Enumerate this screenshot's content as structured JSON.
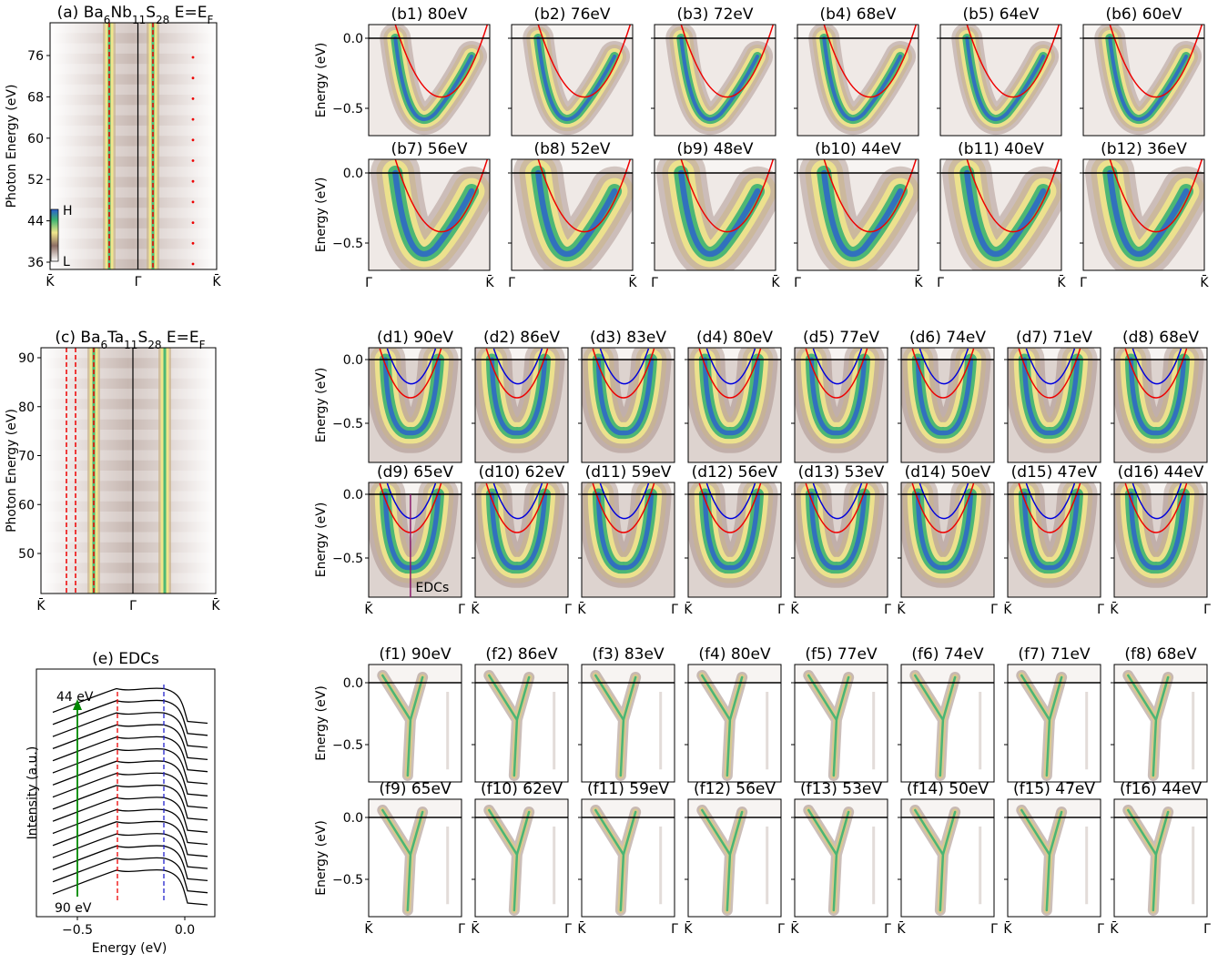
{
  "panel_a": {
    "title": [
      "(a) Ba",
      "6",
      "Nb",
      "11",
      "S",
      "28",
      " E=E",
      "F"
    ],
    "ylabel": "Photon Energy (eV)",
    "yticks": [
      "76",
      "68",
      "60",
      "52",
      "44",
      "36"
    ],
    "xticks": [
      "K̄",
      "Γ̄",
      "K̄"
    ],
    "colorbar": [
      "H",
      "L"
    ]
  },
  "panels_b": {
    "titles": [
      "(b1) 80eV",
      "(b2) 76eV",
      "(b3) 72eV",
      "(b4) 68eV",
      "(b5) 64eV",
      "(b6) 60eV",
      "(b7) 56eV",
      "(b8) 52eV",
      "(b9) 48eV",
      "(b10) 44eV",
      "(b11) 40eV",
      "(b12) 36eV"
    ],
    "ylabel": "Energy (eV)",
    "yticks": [
      "0.0",
      "−0.5"
    ],
    "xticks": [
      "Γ̄",
      "K̄"
    ]
  },
  "panel_c": {
    "title": [
      "(c) Ba",
      "6",
      "Ta",
      "11",
      "S",
      "28",
      " E=E",
      "F"
    ],
    "ylabel": "Photon Energy (eV)",
    "yticks": [
      "90",
      "80",
      "70",
      "60",
      "50"
    ],
    "xticks": [
      "K̄",
      "Γ̄",
      "K̄"
    ]
  },
  "panels_d": {
    "titles": [
      "(d1) 90eV",
      "(d2) 86eV",
      "(d3) 83eV",
      "(d4) 80eV",
      "(d5) 77eV",
      "(d6) 74eV",
      "(d7) 71eV",
      "(d8) 68eV",
      "(d9) 65eV",
      "(d10) 62eV",
      "(d11) 59eV",
      "(d12) 56eV",
      "(d13) 53eV",
      "(d14) 50eV",
      "(d15) 47eV",
      "(d16) 44eV"
    ],
    "ylabel": "Energy (eV)",
    "yticks": [
      "0.0",
      "−0.5"
    ],
    "xticks": [
      "K̄",
      "Γ̄"
    ],
    "annotation": "EDCs"
  },
  "panel_e": {
    "title": "(e) EDCs",
    "xlabel": "Energy (eV)",
    "ylabel": "Intensity (a.u.)",
    "xticks": [
      "−0.5",
      "0.0"
    ],
    "annotations": [
      "44 eV",
      "90 eV"
    ]
  },
  "panels_f": {
    "titles": [
      "(f1) 90eV",
      "(f2) 86eV",
      "(f3) 83eV",
      "(f4) 80eV",
      "(f5) 77eV",
      "(f6) 74eV",
      "(f7) 71eV",
      "(f8) 68eV",
      "(f9) 65eV",
      "(f10) 62eV",
      "(f11) 59eV",
      "(f12) 56eV",
      "(f13) 53eV",
      "(f14) 50eV",
      "(f15) 47eV",
      "(f16) 44eV"
    ],
    "ylabel": "Energy (eV)",
    "yticks": [
      "0.0",
      "−0.5"
    ],
    "xticks": [
      "K̄",
      "Γ̄"
    ]
  }
}
